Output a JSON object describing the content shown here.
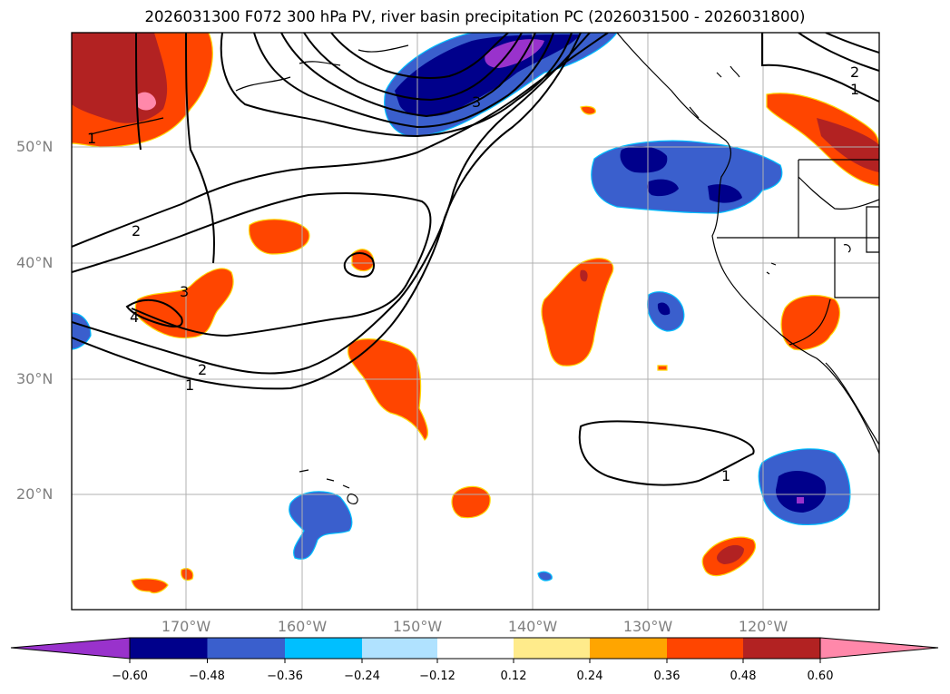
{
  "title": "2026031300 F072 300 hPa PV, river basin precipitation PC (2026031500 - 2026031800)",
  "lat_labels": [
    "50°N",
    "40°N",
    "30°N",
    "20°N"
  ],
  "lon_labels": [
    "170°W",
    "160°W",
    "150°W",
    "140°W",
    "130°W",
    "120°W"
  ],
  "colorbar": {
    "ticks": [
      "−0.60",
      "−0.48",
      "−0.36",
      "−0.24",
      "−0.12",
      "0.12",
      "0.24",
      "0.36",
      "0.48",
      "0.60"
    ],
    "colors": [
      "#9932cc",
      "#00008b",
      "#3a5fcd",
      "#00bfff",
      "#b0e2ff",
      "#ffffff",
      "#ffeb8b",
      "#ffa500",
      "#ff4500",
      "#b22222",
      "#ff88aa"
    ]
  },
  "pv_contour_labels": [
    "1",
    "2",
    "3",
    "4",
    "1",
    "2",
    "3",
    "1",
    "2",
    "1"
  ]
}
